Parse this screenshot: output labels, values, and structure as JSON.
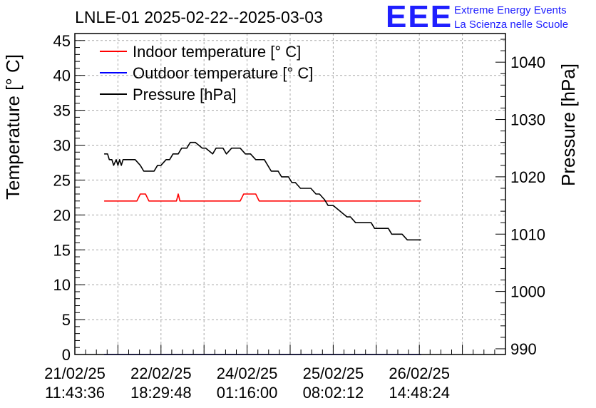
{
  "chart_data": {
    "type": "line",
    "title": "LNLE-01 2025-02-22--2025-03-03",
    "ylabel": "Temperature [° C]",
    "y2label": "Pressure [hPa]",
    "ylim": [
      0,
      46
    ],
    "y2lim": [
      989,
      1045
    ],
    "yticks": [
      0,
      5,
      10,
      15,
      20,
      25,
      30,
      35,
      40,
      45
    ],
    "y2ticks": [
      990,
      1000,
      1010,
      1020,
      1030,
      1040
    ],
    "grid": true,
    "legend": "top-left",
    "xlim": [
      0,
      5.0
    ],
    "xticks": [
      {
        "pos": 0,
        "line1": "21/02/25",
        "line2": "11:43:36"
      },
      {
        "pos": 1,
        "line1": "22/02/25",
        "line2": "18:29:48"
      },
      {
        "pos": 2,
        "line1": "24/02/25",
        "line2": "01:16:00"
      },
      {
        "pos": 3,
        "line1": "25/02/25",
        "line2": "08:02:12"
      },
      {
        "pos": 4,
        "line1": "26/02/25",
        "line2": "14:48:24"
      }
    ],
    "series": [
      {
        "name": "Indoor temperature [° C]",
        "color": "#ff0000",
        "axis": "left",
        "x": [
          0.34,
          0.72,
          0.76,
          0.82,
          0.86,
          1.18,
          1.2,
          1.22,
          1.92,
          1.96,
          2.1,
          2.14,
          4.02
        ],
        "y": [
          22,
          22,
          23,
          23,
          22,
          22,
          23,
          22,
          22,
          23,
          23,
          22,
          22
        ]
      },
      {
        "name": "Outdoor temperature [° C]",
        "color": "#0000ff",
        "axis": "left",
        "x": [
          0.34,
          4.02
        ],
        "y": [
          0,
          0
        ]
      },
      {
        "name": "Pressure [hPa]",
        "color": "#000000",
        "axis": "right",
        "x": [
          0.34,
          0.38,
          0.4,
          0.43,
          0.45,
          0.48,
          0.5,
          0.52,
          0.54,
          0.56,
          0.6,
          0.7,
          0.76,
          0.8,
          0.92,
          0.96,
          1.0,
          1.06,
          1.1,
          1.14,
          1.2,
          1.24,
          1.3,
          1.34,
          1.4,
          1.48,
          1.52,
          1.6,
          1.64,
          1.72,
          1.76,
          1.82,
          1.92,
          1.98,
          2.04,
          2.1,
          2.2,
          2.28,
          2.36,
          2.4,
          2.48,
          2.52,
          2.56,
          2.62,
          2.74,
          2.8,
          2.84,
          2.9,
          2.94,
          3.0,
          3.08,
          3.16,
          3.2,
          3.26,
          3.32,
          3.38,
          3.44,
          3.48,
          3.58,
          3.64,
          3.68,
          3.72,
          3.8,
          3.86,
          3.9,
          3.96,
          4.02
        ],
        "y": [
          1024,
          1024,
          1023,
          1023,
          1022,
          1023,
          1022,
          1023,
          1022,
          1023,
          1023,
          1023,
          1022,
          1021,
          1021,
          1022,
          1022,
          1023,
          1023,
          1024,
          1024,
          1025,
          1025,
          1026,
          1026,
          1025,
          1025,
          1024,
          1025,
          1025,
          1024,
          1025,
          1025,
          1024,
          1024,
          1023,
          1023,
          1021,
          1021,
          1020,
          1020,
          1019,
          1019,
          1018,
          1018,
          1017,
          1017,
          1016,
          1015,
          1015,
          1014,
          1013,
          1013,
          1012,
          1012,
          1012,
          1012,
          1011,
          1011,
          1011,
          1010,
          1010,
          1010,
          1009,
          1009,
          1009,
          1009
        ]
      }
    ]
  },
  "brand": {
    "logo": "EEE",
    "line1": "Extreme Energy Events",
    "line2": "La Scienza nelle Scuole"
  }
}
